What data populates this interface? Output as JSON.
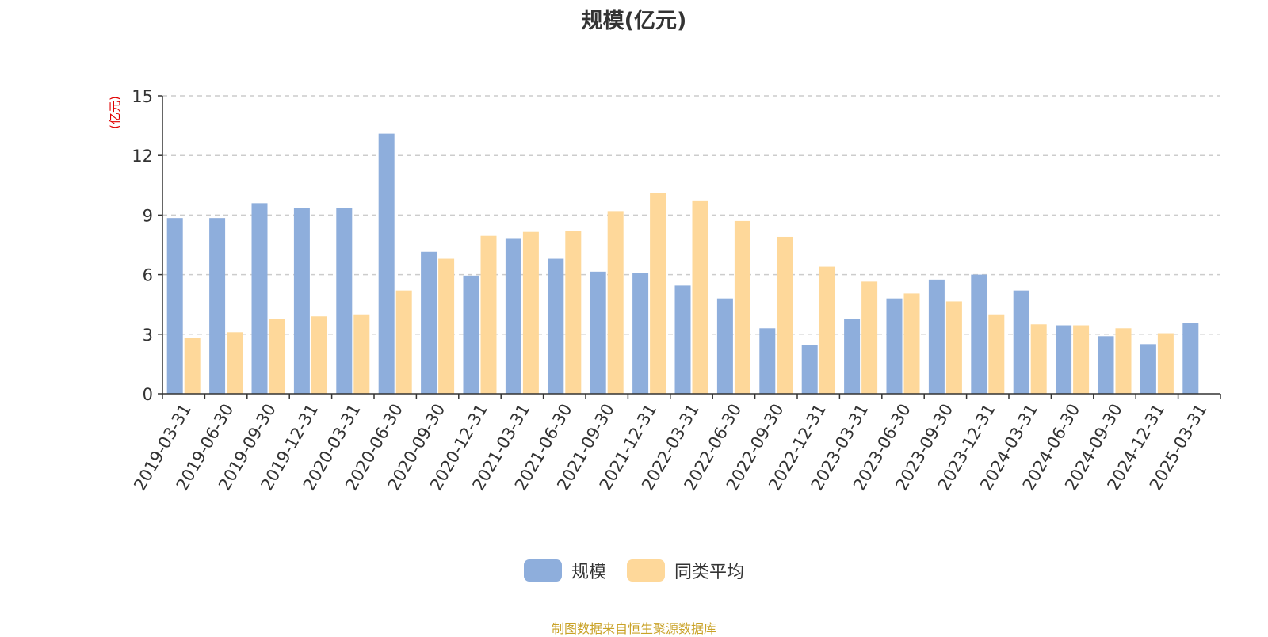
{
  "chart_data": {
    "type": "bar",
    "title": "规模(亿元)",
    "ylabel": "(亿元)",
    "xlabel": "",
    "ylim": [
      0,
      15
    ],
    "yticks": [
      0,
      3,
      6,
      9,
      12,
      15
    ],
    "grid": true,
    "legend_position": "bottom",
    "categories": [
      "2019-03-31",
      "2019-06-30",
      "2019-09-30",
      "2019-12-31",
      "2020-03-31",
      "2020-06-30",
      "2020-09-30",
      "2020-12-31",
      "2021-03-31",
      "2021-06-30",
      "2021-09-30",
      "2021-12-31",
      "2022-03-31",
      "2022-06-30",
      "2022-09-30",
      "2022-12-31",
      "2023-03-31",
      "2023-06-30",
      "2023-09-30",
      "2023-12-31",
      "2024-03-31",
      "2024-06-30",
      "2024-09-30",
      "2024-12-31",
      "2025-03-31"
    ],
    "series": [
      {
        "name": "规模",
        "color": "#8eaedc",
        "values": [
          8.85,
          8.85,
          9.6,
          9.35,
          9.35,
          13.1,
          7.15,
          5.95,
          7.8,
          6.8,
          6.15,
          6.1,
          5.45,
          4.8,
          3.3,
          2.45,
          3.75,
          4.8,
          5.75,
          6.0,
          5.2,
          3.45,
          2.9,
          2.5,
          3.55
        ]
      },
      {
        "name": "同类平均",
        "color": "#fed89a",
        "values": [
          2.8,
          3.1,
          3.75,
          3.9,
          4.0,
          5.2,
          6.8,
          7.95,
          8.15,
          8.2,
          9.2,
          10.1,
          9.7,
          8.7,
          7.9,
          6.4,
          5.65,
          5.05,
          4.65,
          4.0,
          3.5,
          3.45,
          3.3,
          3.05,
          null
        ]
      }
    ]
  },
  "footer": {
    "source": "制图数据来自恒生聚源数据库",
    "source_color": "#c9a227"
  },
  "ylabel_color": "#e00000"
}
